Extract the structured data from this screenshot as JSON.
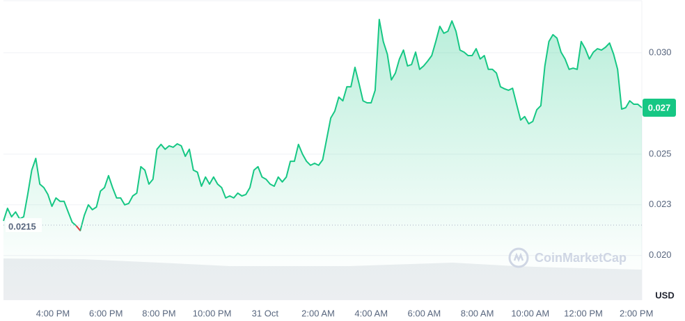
{
  "chart_data": {
    "type": "line",
    "x_labels": [
      "4:00 PM",
      "6:00 PM",
      "8:00 PM",
      "10:00 PM",
      "31 Oct",
      "2:00 AM",
      "4:00 AM",
      "6:00 AM",
      "8:00 AM",
      "10:00 AM",
      "12:00 PM",
      "2:00 PM"
    ],
    "series": [
      {
        "color": "#16c784",
        "down_color": "#ea3943",
        "values": [
          0.02171,
          0.02233,
          0.02191,
          0.02215,
          0.02181,
          0.02191,
          0.02301,
          0.02421,
          0.02479,
          0.02352,
          0.02335,
          0.02301,
          0.02243,
          0.02284,
          0.02267,
          0.02267,
          0.02215,
          0.02164,
          0.02147,
          0.02123,
          0.02198,
          0.0225,
          0.02226,
          0.02239,
          0.02318,
          0.02335,
          0.02394,
          0.02335,
          0.02284,
          0.02284,
          0.0225,
          0.02257,
          0.02294,
          0.02308,
          0.02438,
          0.02421,
          0.02352,
          0.02376,
          0.02524,
          0.02548,
          0.02524,
          0.02541,
          0.02534,
          0.02551,
          0.02541,
          0.02489,
          0.02524,
          0.02421,
          0.02411,
          0.02342,
          0.02387,
          0.02352,
          0.02387,
          0.02352,
          0.02335,
          0.02284,
          0.02294,
          0.02284,
          0.02308,
          0.02294,
          0.02301,
          0.02335,
          0.02421,
          0.02438,
          0.02387,
          0.02376,
          0.02352,
          0.02342,
          0.02387,
          0.02363,
          0.02387,
          0.02465,
          0.02465,
          0.02548,
          0.025,
          0.02465,
          0.02445,
          0.02455,
          0.02445,
          0.02472,
          0.02575,
          0.02678,
          0.02712,
          0.02781,
          0.02763,
          0.02832,
          0.02832,
          0.02928,
          0.02849,
          0.02763,
          0.02753,
          0.02753,
          0.02815,
          0.03164,
          0.03055,
          0.02993,
          0.02866,
          0.029,
          0.02969,
          0.03013,
          0.02935,
          0.02942,
          0.03003,
          0.02918,
          0.02935,
          0.02959,
          0.02986,
          0.03055,
          0.0313,
          0.03096,
          0.03106,
          0.03157,
          0.03106,
          0.03013,
          0.03003,
          0.02986,
          0.02986,
          0.0302,
          0.02969,
          0.02986,
          0.02918,
          0.02918,
          0.029,
          0.02832,
          0.02822,
          0.02815,
          0.02825,
          0.02746,
          0.02668,
          0.02685,
          0.0265,
          0.02661,
          0.02719,
          0.02739,
          0.02935,
          0.03055,
          0.03089,
          0.03072,
          0.03003,
          0.02969,
          0.02918,
          0.02924,
          0.02918,
          0.03055,
          0.0302,
          0.02969,
          0.03003,
          0.0302,
          0.03013,
          0.03027,
          0.03048,
          0.02993,
          0.02918,
          0.02722,
          0.02729,
          0.02763,
          0.02746,
          0.02746,
          0.02729
        ]
      }
    ],
    "ylim": [
      0.0178,
      0.0326
    ],
    "yticks": [
      {
        "value": 0.03,
        "label": "0.030"
      },
      0.025,
      {
        "value": 0.0225,
        "label": "0.023"
      },
      {
        "value": 0.02,
        "label": "0.020"
      }
    ],
    "grid": true,
    "baseline": 0.0215,
    "current_price_label": "0.027",
    "y_unit": "USD",
    "watermark": "CoinMarketCap"
  }
}
